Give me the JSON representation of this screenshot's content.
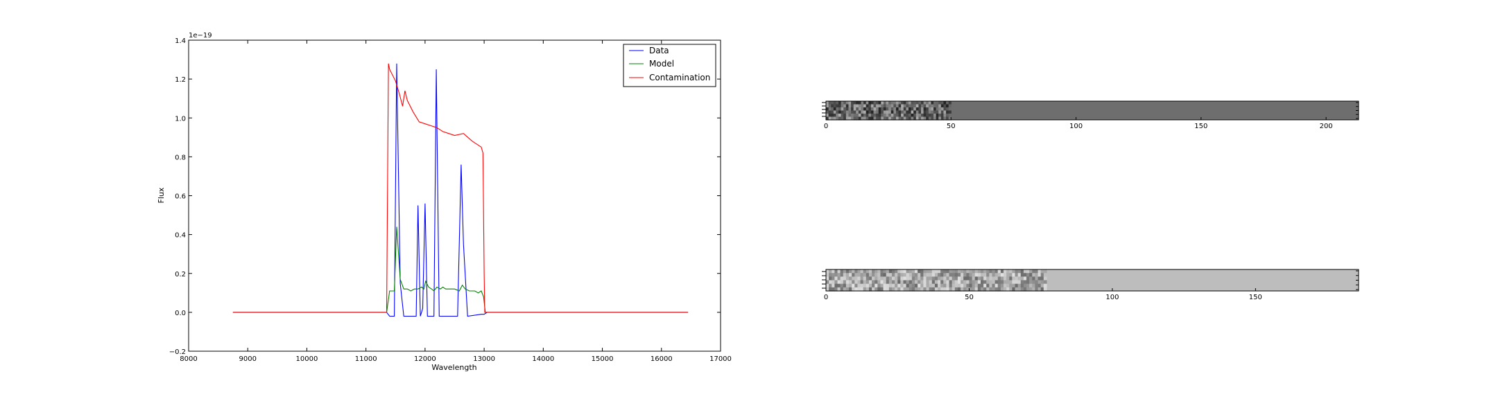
{
  "chart_data": [
    {
      "type": "line",
      "xlabel": "Wavelength",
      "ylabel": "Flux",
      "offset_label": "1e−19",
      "xlim": [
        8000,
        17000
      ],
      "ylim": [
        -0.2,
        1.4
      ],
      "xticks": [
        "8000",
        "9000",
        "10000",
        "11000",
        "12000",
        "13000",
        "14000",
        "15000",
        "16000",
        "17000"
      ],
      "yticks": [
        "−0.2",
        "0.0",
        "0.2",
        "0.4",
        "0.6",
        "0.8",
        "1.0",
        "1.2",
        "1.4"
      ],
      "grid": false,
      "legend_position": "top-right",
      "series": [
        {
          "name": "Data",
          "color": "#0000ff",
          "points": [
            [
              8750,
              0
            ],
            [
              11350,
              0
            ],
            [
              11400,
              -0.02
            ],
            [
              11480,
              -0.02
            ],
            [
              11520,
              1.28
            ],
            [
              11580,
              0.15
            ],
            [
              11640,
              -0.02
            ],
            [
              11850,
              -0.02
            ],
            [
              11880,
              0.55
            ],
            [
              11920,
              -0.02
            ],
            [
              11960,
              0.02
            ],
            [
              12000,
              0.56
            ],
            [
              12040,
              -0.02
            ],
            [
              12150,
              -0.02
            ],
            [
              12190,
              1.25
            ],
            [
              12240,
              -0.02
            ],
            [
              12550,
              -0.02
            ],
            [
              12610,
              0.76
            ],
            [
              12650,
              0.35
            ],
            [
              12720,
              -0.02
            ],
            [
              12950,
              -0.01
            ],
            [
              13000,
              -0.01
            ],
            [
              13050,
              0
            ],
            [
              16450,
              0
            ]
          ]
        },
        {
          "name": "Model",
          "color": "#008000",
          "points": [
            [
              8750,
              0
            ],
            [
              11350,
              0
            ],
            [
              11400,
              0.11
            ],
            [
              11480,
              0.11
            ],
            [
              11520,
              0.44
            ],
            [
              11580,
              0.17
            ],
            [
              11640,
              0.12
            ],
            [
              11700,
              0.12
            ],
            [
              11760,
              0.11
            ],
            [
              11820,
              0.12
            ],
            [
              11880,
              0.12
            ],
            [
              11940,
              0.13
            ],
            [
              11980,
              0.12
            ],
            [
              12010,
              0.16
            ],
            [
              12060,
              0.13
            ],
            [
              12110,
              0.12
            ],
            [
              12150,
              0.11
            ],
            [
              12200,
              0.13
            ],
            [
              12260,
              0.12
            ],
            [
              12300,
              0.13
            ],
            [
              12350,
              0.12
            ],
            [
              12420,
              0.12
            ],
            [
              12500,
              0.12
            ],
            [
              12580,
              0.11
            ],
            [
              12630,
              0.14
            ],
            [
              12680,
              0.12
            ],
            [
              12750,
              0.11
            ],
            [
              12840,
              0.11
            ],
            [
              12900,
              0.1
            ],
            [
              12950,
              0.11
            ],
            [
              12990,
              0.08
            ],
            [
              13020,
              0
            ],
            [
              16450,
              0
            ]
          ]
        },
        {
          "name": "Contamination",
          "color": "#ff0000",
          "points": [
            [
              8750,
              0
            ],
            [
              11350,
              0
            ],
            [
              11380,
              1.28
            ],
            [
              11400,
              1.25
            ],
            [
              11500,
              1.19
            ],
            [
              11570,
              1.12
            ],
            [
              11620,
              1.06
            ],
            [
              11660,
              1.14
            ],
            [
              11700,
              1.09
            ],
            [
              11800,
              1.03
            ],
            [
              11900,
              0.98
            ],
            [
              12000,
              0.97
            ],
            [
              12100,
              0.96
            ],
            [
              12200,
              0.95
            ],
            [
              12300,
              0.93
            ],
            [
              12400,
              0.92
            ],
            [
              12500,
              0.91
            ],
            [
              12650,
              0.92
            ],
            [
              12800,
              0.88
            ],
            [
              12950,
              0.85
            ],
            [
              12980,
              0.82
            ],
            [
              13000,
              0.2
            ],
            [
              13010,
              0
            ],
            [
              16450,
              0
            ]
          ]
        }
      ]
    },
    {
      "type": "heatmap",
      "xticks": [
        "0",
        "50",
        "100",
        "150",
        "200"
      ],
      "xlim": [
        0,
        213
      ],
      "yticks_unreadable": true,
      "data_extent": 50,
      "background_color": "#6e6e6e"
    },
    {
      "type": "heatmap",
      "xticks": [
        "0",
        "50",
        "100",
        "150"
      ],
      "xlim": [
        0,
        186
      ],
      "yticks_unreadable": true,
      "data_extent": 77,
      "background_color": "#bdbdbd"
    }
  ]
}
